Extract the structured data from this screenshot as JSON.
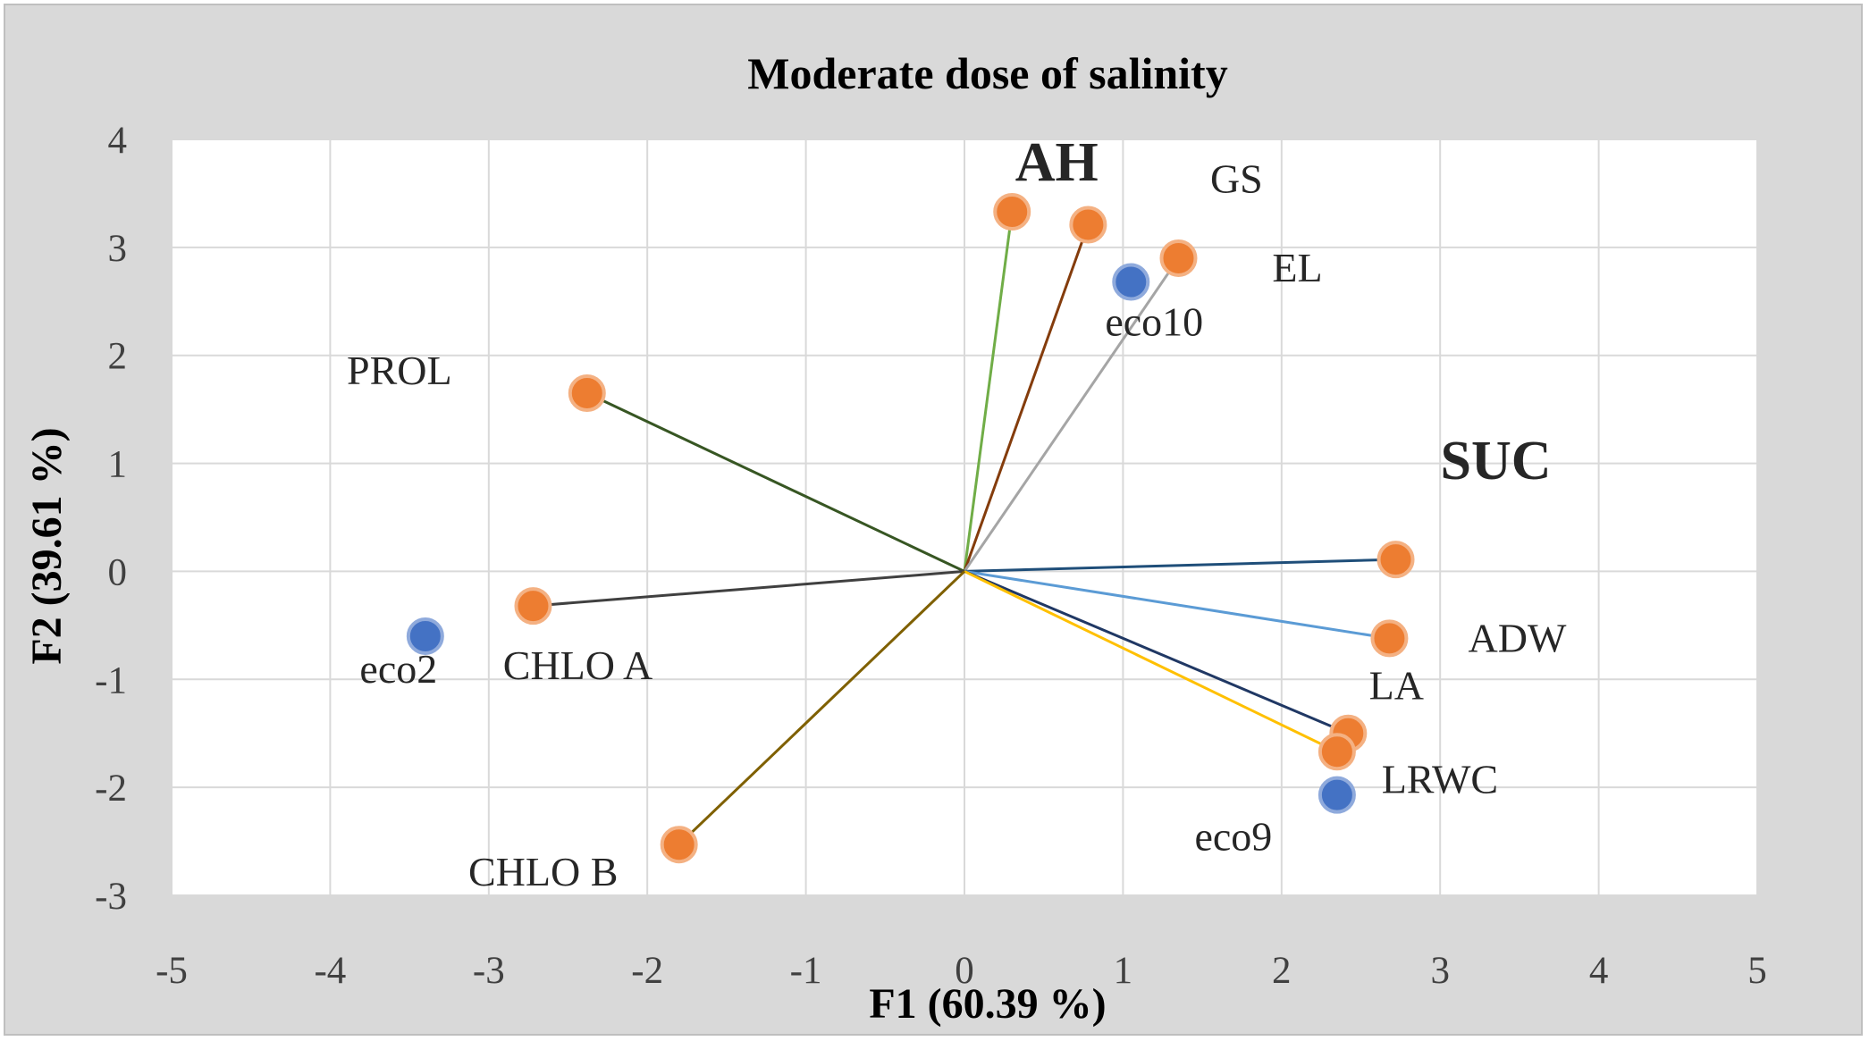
{
  "chart_data": {
    "type": "scatter",
    "subtype": "pca-biplot",
    "title": "Moderate dose of salinity",
    "xlabel": "F1 (60.39 %)",
    "ylabel": "F2 (39.61 %)",
    "xlim": [
      -5,
      5
    ],
    "ylim": [
      -3,
      4
    ],
    "xticks": [
      "-5",
      "-4",
      "-3",
      "-2",
      "-1",
      "0",
      "1",
      "2",
      "3",
      "4",
      "5"
    ],
    "yticks": [
      "4",
      "3",
      "2",
      "1",
      "0",
      "-1",
      "-2",
      "-3"
    ],
    "grid": true,
    "background": "#d9d9d9",
    "plot_background": "#ffffff",
    "variables": [
      {
        "label": "AH",
        "x": 0.3,
        "y": 3.33,
        "color": "#70ad47",
        "emphasis": true
      },
      {
        "label": "GS",
        "x": 0.78,
        "y": 3.21,
        "color": "#843c0c",
        "emphasis": false
      },
      {
        "label": "EL",
        "x": 1.35,
        "y": 2.9,
        "color": "#a5a5a5",
        "emphasis": false
      },
      {
        "label": "PROL",
        "x": -2.38,
        "y": 1.65,
        "color": "#375623",
        "emphasis": false
      },
      {
        "label": "SUC",
        "x": 2.72,
        "y": 0.11,
        "color": "#1f4e79",
        "emphasis": true
      },
      {
        "label": "ADW",
        "x": 2.68,
        "y": -0.62,
        "color": "#5b9bd5",
        "emphasis": false
      },
      {
        "label": "LA",
        "x": 2.42,
        "y": -1.5,
        "color": "#203864",
        "emphasis": false
      },
      {
        "label": "LRWC",
        "x": 2.35,
        "y": -1.67,
        "color": "#ffc000",
        "emphasis": false
      },
      {
        "label": "CHLO A",
        "x": -2.72,
        "y": -0.32,
        "color": "#404040",
        "emphasis": false
      },
      {
        "label": "CHLO B",
        "x": -1.8,
        "y": -2.53,
        "color": "#7f6000",
        "emphasis": false
      }
    ],
    "observations": [
      {
        "label": "eco10",
        "x": 1.05,
        "y": 2.68
      },
      {
        "label": "eco2",
        "x": -3.4,
        "y": -0.6
      },
      {
        "label": "eco9",
        "x": 2.35,
        "y": -2.07
      }
    ],
    "variable_marker_color": "#ed7d31",
    "observation_marker_color": "#4472c4"
  }
}
